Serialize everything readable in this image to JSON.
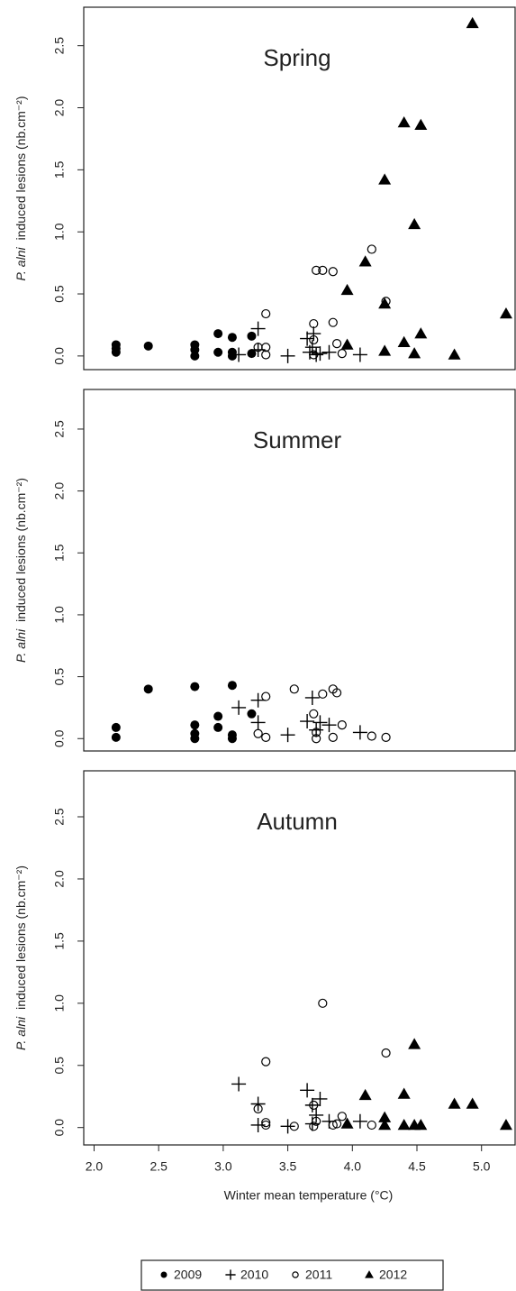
{
  "chart_data": [
    {
      "type": "scatter",
      "title": "Spring",
      "ylabel_italic": "P. alni",
      "ylabel": "induced lesions (nb.cm⁻²)",
      "xlim": [
        1.92,
        5.26
      ],
      "ylim": [
        -0.11,
        2.81
      ],
      "yticks": [
        {
          "value": 0,
          "label": "0.0"
        },
        {
          "value": 0.5,
          "label": "0.5"
        },
        {
          "value": 1,
          "label": "1.0"
        },
        {
          "value": 1.5,
          "label": "1.5"
        },
        {
          "value": 2,
          "label": "2.0"
        },
        {
          "value": 2.5,
          "label": "2.5"
        }
      ],
      "series": [
        {
          "name": "2009",
          "marker": "filled-circle",
          "color": "#000000",
          "x": [
            2.17,
            2.17,
            2.17,
            2.42,
            2.78,
            2.78,
            2.78,
            2.96,
            2.96,
            3.07,
            3.07,
            3.07,
            3.22,
            3.22
          ],
          "values": [
            0.03,
            0.06,
            0.09,
            0.08,
            0.0,
            0.05,
            0.09,
            0.18,
            0.03,
            0.15,
            0.03,
            0.0,
            0.16,
            0.02
          ]
        },
        {
          "name": "2010",
          "marker": "plus",
          "color": "#000000",
          "x": [
            3.12,
            3.27,
            3.27,
            3.5,
            3.65,
            3.67,
            3.69,
            3.72,
            3.75,
            3.82,
            4.06,
            3.7
          ],
          "values": [
            0.01,
            0.22,
            0.05,
            0.0,
            0.14,
            0.03,
            0.07,
            0.01,
            0.02,
            0.03,
            0.01,
            0.18
          ]
        },
        {
          "name": "2011",
          "marker": "open-circle",
          "color": "#000000",
          "x": [
            3.27,
            3.33,
            3.33,
            3.33,
            3.7,
            3.7,
            3.72,
            3.77,
            3.85,
            3.85,
            3.88,
            3.92,
            4.15,
            4.26,
            3.7
          ],
          "values": [
            0.07,
            0.34,
            0.07,
            0.01,
            0.26,
            0.13,
            0.69,
            0.69,
            0.68,
            0.27,
            0.1,
            0.02,
            0.86,
            0.44,
            0.01
          ]
        },
        {
          "name": "2012",
          "marker": "triangle",
          "color": "#000000",
          "x": [
            3.96,
            3.96,
            4.1,
            4.25,
            4.25,
            4.25,
            4.4,
            4.4,
            4.48,
            4.48,
            4.53,
            4.53,
            4.79,
            4.93,
            5.19
          ],
          "values": [
            0.53,
            0.09,
            0.76,
            1.42,
            0.42,
            0.04,
            1.88,
            0.11,
            1.06,
            0.02,
            1.86,
            0.18,
            0.01,
            2.68,
            0.34
          ]
        }
      ]
    },
    {
      "type": "scatter",
      "title": "Summer",
      "ylabel_italic": "P. alni",
      "ylabel": "induced lesions (nb.cm⁻²)",
      "xlim": [
        1.92,
        5.26
      ],
      "ylim": [
        -0.1,
        2.82
      ],
      "yticks": [
        {
          "value": 0,
          "label": "0.0"
        },
        {
          "value": 0.5,
          "label": "0.5"
        },
        {
          "value": 1,
          "label": "1.0"
        },
        {
          "value": 1.5,
          "label": "1.5"
        },
        {
          "value": 2,
          "label": "2.0"
        },
        {
          "value": 2.5,
          "label": "2.5"
        }
      ],
      "series": [
        {
          "name": "2009",
          "marker": "filled-circle",
          "color": "#000000",
          "x": [
            2.17,
            2.17,
            2.42,
            2.78,
            2.78,
            2.78,
            2.78,
            2.96,
            2.96,
            3.07,
            3.07,
            3.07,
            3.22
          ],
          "values": [
            0.09,
            0.01,
            0.4,
            0.42,
            0.11,
            0.04,
            0.0,
            0.18,
            0.09,
            0.43,
            0.03,
            0.0,
            0.2
          ]
        },
        {
          "name": "2010",
          "marker": "plus",
          "color": "#000000",
          "x": [
            3.12,
            3.27,
            3.27,
            3.5,
            3.65,
            3.69,
            3.72,
            3.75,
            3.82,
            4.06
          ],
          "values": [
            0.25,
            0.31,
            0.13,
            0.03,
            0.14,
            0.33,
            0.07,
            0.13,
            0.11,
            0.05
          ]
        },
        {
          "name": "2011",
          "marker": "open-circle",
          "color": "#000000",
          "x": [
            3.27,
            3.33,
            3.33,
            3.55,
            3.7,
            3.72,
            3.72,
            3.77,
            3.85,
            3.88,
            3.85,
            3.92,
            4.15,
            4.26
          ],
          "values": [
            0.04,
            0.34,
            0.01,
            0.4,
            0.2,
            0.05,
            0.0,
            0.36,
            0.4,
            0.37,
            0.01,
            0.11,
            0.02,
            0.01
          ]
        }
      ]
    },
    {
      "type": "scatter",
      "title": "Autumn",
      "ylabel_italic": "P. alni",
      "ylabel": "induced lesions (nb.cm⁻²)",
      "xlabel": "Winter mean temperature (°C)",
      "xlim": [
        1.92,
        5.26
      ],
      "ylim": [
        -0.14,
        2.87
      ],
      "xticks": [
        {
          "value": 2,
          "label": "2.0"
        },
        {
          "value": 2.5,
          "label": "2.5"
        },
        {
          "value": 3,
          "label": "3.0"
        },
        {
          "value": 3.5,
          "label": "3.5"
        },
        {
          "value": 4,
          "label": "4.0"
        },
        {
          "value": 4.5,
          "label": "4.5"
        },
        {
          "value": 5,
          "label": "5.0"
        }
      ],
      "yticks": [
        {
          "value": 0,
          "label": "0.0"
        },
        {
          "value": 0.5,
          "label": "0.5"
        },
        {
          "value": 1,
          "label": "1.0"
        },
        {
          "value": 1.5,
          "label": "1.5"
        },
        {
          "value": 2,
          "label": "2.0"
        },
        {
          "value": 2.5,
          "label": "2.5"
        }
      ],
      "series": [
        {
          "name": "2010",
          "marker": "plus",
          "color": "#000000",
          "x": [
            3.12,
            3.27,
            3.27,
            3.5,
            3.65,
            3.69,
            3.72,
            3.75,
            3.69,
            4.06,
            3.82
          ],
          "values": [
            0.35,
            0.19,
            0.02,
            0.01,
            0.3,
            0.18,
            0.1,
            0.23,
            0.03,
            0.05,
            0.05
          ]
        },
        {
          "name": "2011",
          "marker": "open-circle",
          "color": "#000000",
          "x": [
            3.27,
            3.33,
            3.33,
            3.33,
            3.55,
            3.7,
            3.72,
            3.7,
            3.77,
            3.85,
            3.88,
            3.92,
            4.15,
            4.26
          ],
          "values": [
            0.15,
            0.53,
            0.04,
            0.02,
            0.01,
            0.18,
            0.05,
            0.01,
            1.0,
            0.02,
            0.03,
            0.09,
            0.02,
            0.6
          ]
        },
        {
          "name": "2012",
          "marker": "triangle",
          "color": "#000000",
          "x": [
            3.96,
            4.1,
            4.25,
            4.25,
            4.4,
            4.4,
            4.48,
            4.48,
            4.53,
            4.79,
            4.93,
            5.19
          ],
          "values": [
            0.03,
            0.26,
            0.08,
            0.02,
            0.27,
            0.02,
            0.67,
            0.02,
            0.02,
            0.19,
            0.19,
            0.02
          ]
        }
      ]
    }
  ]
}
